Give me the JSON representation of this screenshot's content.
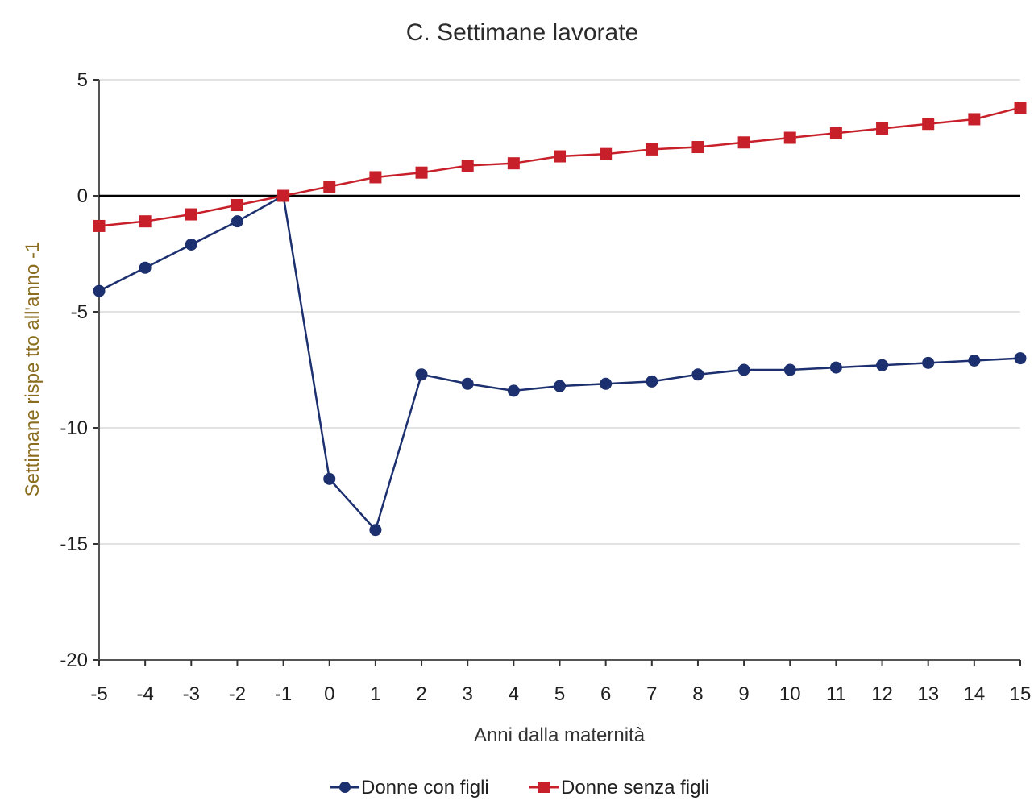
{
  "chart_data": {
    "type": "line",
    "title": "C. Settimane lavorate",
    "xlabel": "Anni dalla maternità",
    "ylabel": "Settimane rispe tto all'anno -1",
    "x": [
      -5,
      -4,
      -3,
      -2,
      -1,
      0,
      1,
      2,
      3,
      4,
      5,
      6,
      7,
      8,
      9,
      10,
      11,
      12,
      13,
      14,
      15
    ],
    "xlim": [
      -5,
      15
    ],
    "ylim": [
      -20,
      5
    ],
    "yticks": [
      5,
      0,
      -5,
      -10,
      -15,
      -20
    ],
    "grid": true,
    "legend_position": "bottom-center",
    "series": [
      {
        "name": "Donne con figli",
        "color": "#1c2f6e",
        "marker": "circle",
        "values": [
          -4.1,
          -3.1,
          -2.1,
          -1.1,
          0,
          -12.2,
          -14.4,
          -7.7,
          -8.1,
          -8.4,
          -8.2,
          -8.1,
          -8.0,
          -7.7,
          -7.5,
          -7.5,
          -7.4,
          -7.3,
          -7.2,
          -7.1,
          -7.0
        ]
      },
      {
        "name": "Donne senza figli",
        "color": "#c8202a",
        "marker": "square",
        "values": [
          -1.3,
          -1.1,
          -0.8,
          -0.4,
          0,
          0.4,
          0.8,
          1.0,
          1.3,
          1.4,
          1.7,
          1.8,
          2.0,
          2.1,
          2.3,
          2.5,
          2.7,
          2.9,
          3.1,
          3.3,
          3.8
        ]
      }
    ]
  }
}
